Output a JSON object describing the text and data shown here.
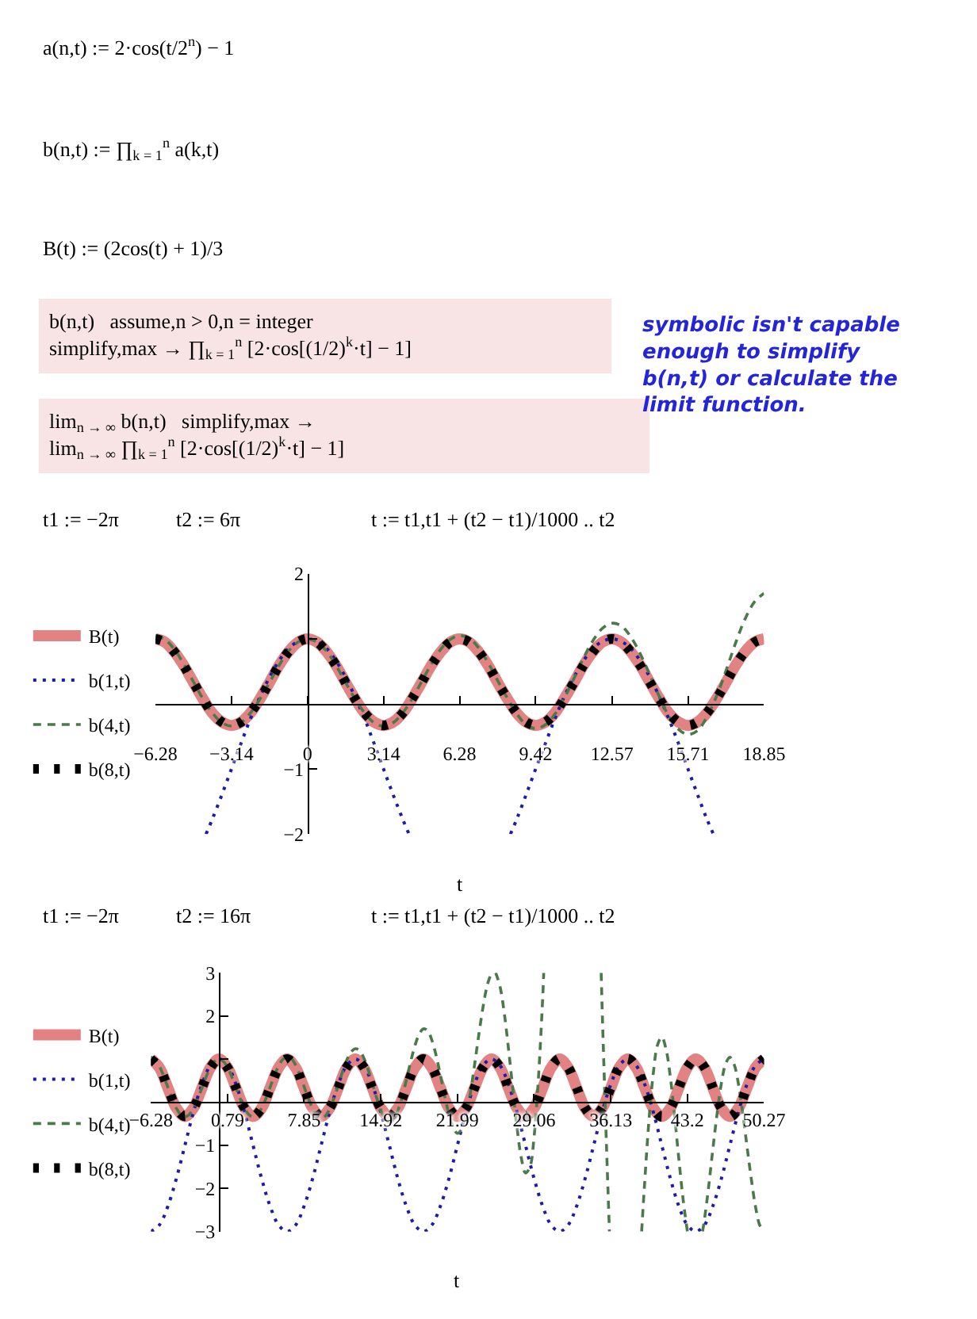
{
  "chart_data": [
    {
      "type": "line",
      "xlabel": "t",
      "annotations": [
        "a(n,t) := 2·cos(t/2$^{n}$) − 1",
        "b(n,t) := ∏$_{k = 1}$$^{n}$ a(k,t)",
        "B(t) := (2cos(t) + 1)/3",
        "b(n,t)   assume,n > 0,n = integer\nsimplify,max → ∏$_{k = 1}$$^{n}$ [2·cos[(1/2)$^{k}$·t] − 1]",
        "lim$_{n → ∞}$ b(n,t)   simplify,max →\nlim$_{n → ∞}$ ∏$_{k = 1}$$^{n}$ [2·cos[(1/2)$^{k}$·t] − 1]",
        "symbolic isn't capable enough to simplify b(n,t) or calculate the limit function.",
        "t1 := −2π",
        "t2 := 6π",
        "t := t1,t1 + (t2 − t1)/1000 .. t2"
      ],
      "x": [
        -6.28,
        -5.89,
        -5.5,
        -5.11,
        -4.71,
        -4.32,
        -3.93,
        -3.53,
        -3.14,
        -2.75,
        -2.36,
        -1.96,
        -1.57,
        -1.18,
        -0.79,
        -0.39,
        0,
        0.39,
        0.79,
        1.18,
        1.57,
        1.96,
        2.36,
        2.75,
        3.14,
        3.53,
        3.93,
        4.32,
        4.71,
        5.11,
        5.5,
        5.89,
        6.28,
        6.68,
        7.07,
        7.46,
        7.85,
        8.25,
        8.64,
        9.03,
        9.42,
        9.82,
        10.21,
        10.6,
        11.0,
        11.39,
        11.78,
        12.17,
        12.57,
        12.96,
        13.35,
        13.74,
        14.14,
        14.53,
        14.92,
        15.32,
        15.71,
        16.1,
        16.49,
        16.89,
        17.28,
        17.67,
        18.06,
        18.46,
        18.85
      ],
      "xlim": [
        -6.28,
        18.85
      ],
      "xticks": [
        -6.28,
        -3.14,
        0,
        3.14,
        6.28,
        9.42,
        12.57,
        15.71,
        18.85
      ],
      "ylim": [
        -2,
        2
      ],
      "yticks": [
        -2,
        -1,
        {
          "value": 1,
          "label": null
        },
        2
      ],
      "legend": "left",
      "series": [
        {
          "name": "B(t)",
          "color": "#e28282",
          "line_style": "solid",
          "values": [
            1,
            0.95,
            0.8,
            0.59,
            0.33,
            0.08,
            -0.14,
            -0.28,
            -0.33,
            -0.28,
            -0.14,
            0.08,
            0.33,
            0.59,
            0.8,
            0.95,
            1,
            0.95,
            0.8,
            0.59,
            0.33,
            0.08,
            -0.14,
            -0.28,
            -0.33,
            -0.28,
            -0.14,
            0.08,
            0.33,
            0.59,
            0.8,
            0.95,
            1,
            0.95,
            0.8,
            0.59,
            0.33,
            0.08,
            -0.14,
            -0.28,
            -0.33,
            -0.28,
            -0.14,
            0.08,
            0.33,
            0.59,
            0.8,
            0.95,
            1,
            0.95,
            0.8,
            0.59,
            0.33,
            0.08,
            -0.14,
            -0.28,
            -0.33,
            -0.28,
            -0.14,
            0.08,
            0.33,
            0.59,
            0.8,
            0.95,
            1
          ]
        },
        {
          "name": "b(1,t)",
          "color": "#1c1ca8",
          "line_style": "dotted",
          "x": [
            -4.19,
            -3.93,
            -3.53,
            -3.14,
            -2.75,
            -2.36,
            -1.96,
            -1.57,
            -1.18,
            -0.79,
            -0.39,
            0,
            0.39,
            0.79,
            1.18,
            1.57,
            1.96,
            2.36,
            2.75,
            3.14,
            3.53,
            3.93,
            4.19,
            6.28,
            8.38,
            8.64,
            9.03,
            9.42,
            9.82,
            10.21,
            10.6,
            11.0,
            11.39,
            11.78,
            12.17,
            12.57,
            12.96,
            13.35,
            13.74,
            14.14,
            14.53,
            14.92,
            15.32,
            15.71,
            16.1,
            16.49,
            16.76
          ],
          "values": [
            -2,
            -1.77,
            -1.39,
            -1,
            -0.61,
            -0.23,
            0.11,
            0.41,
            0.66,
            0.85,
            0.96,
            1,
            0.96,
            0.85,
            0.66,
            0.41,
            0.11,
            -0.23,
            -0.61,
            -1,
            -1.39,
            -1.77,
            -2,
            null,
            -2,
            -1.77,
            -1.39,
            -1,
            -0.61,
            -0.23,
            0.11,
            0.41,
            0.66,
            0.85,
            0.96,
            1,
            0.96,
            0.85,
            0.66,
            0.41,
            0.11,
            -0.23,
            -0.61,
            -1,
            -1.39,
            -1.77,
            -2
          ]
        },
        {
          "name": "b(4,t)",
          "color": "#4a7a4a",
          "line_style": "dashed",
          "values": [
            1.05,
            0.99,
            0.84,
            0.61,
            0.34,
            0.08,
            -0.14,
            -0.29,
            -0.34,
            -0.29,
            -0.14,
            0.08,
            0.33,
            0.59,
            0.81,
            0.95,
            1,
            0.95,
            0.81,
            0.59,
            0.33,
            0.08,
            -0.14,
            -0.29,
            -0.34,
            -0.29,
            -0.14,
            0.08,
            0.34,
            0.61,
            0.84,
            0.99,
            1.05,
            1.01,
            0.86,
            0.63,
            0.36,
            0.09,
            -0.15,
            -0.32,
            -0.38,
            -0.32,
            -0.16,
            0.09,
            0.39,
            0.7,
            0.97,
            1.16,
            1.24,
            1.2,
            1.03,
            0.77,
            0.44,
            0.11,
            -0.19,
            -0.39,
            -0.47,
            -0.41,
            -0.2,
            0.12,
            0.51,
            0.93,
            1.3,
            1.57,
            1.7
          ]
        },
        {
          "name": "b(8,t)",
          "color": "#000000",
          "line_style": "dotted",
          "values": [
            1,
            0.95,
            0.8,
            0.59,
            0.33,
            0.08,
            -0.14,
            -0.28,
            -0.33,
            -0.28,
            -0.14,
            0.08,
            0.33,
            0.59,
            0.8,
            0.95,
            1,
            0.95,
            0.8,
            0.59,
            0.33,
            0.08,
            -0.14,
            -0.28,
            -0.33,
            -0.28,
            -0.14,
            0.08,
            0.33,
            0.59,
            0.8,
            0.95,
            1,
            0.95,
            0.8,
            0.59,
            0.33,
            0.08,
            -0.14,
            -0.28,
            -0.33,
            -0.28,
            -0.14,
            0.08,
            0.33,
            0.59,
            0.8,
            0.95,
            1,
            0.95,
            0.8,
            0.59,
            0.33,
            0.08,
            -0.14,
            -0.28,
            -0.33,
            -0.28,
            -0.14,
            0.08,
            0.33,
            0.59,
            0.8,
            0.95,
            1
          ]
        }
      ]
    },
    {
      "type": "line",
      "xlabel": "t",
      "annotations": [
        "t1 := −2π",
        "t2 := 16π",
        "t := t1,t1 + (t2 − t1)/1000 .. t2"
      ],
      "x": [
        -6.28,
        -5.5,
        -4.71,
        -3.93,
        -3.14,
        -2.36,
        -1.57,
        -0.79,
        0,
        0.79,
        1.57,
        2.36,
        3.14,
        3.93,
        4.71,
        5.5,
        6.28,
        7.07,
        7.85,
        8.64,
        9.42,
        10.21,
        11.0,
        11.78,
        12.57,
        13.35,
        14.14,
        14.92,
        15.71,
        16.49,
        17.28,
        18.06,
        18.85,
        19.63,
        20.42,
        21.21,
        21.99,
        22.78,
        23.56,
        24.35,
        25.13,
        25.92,
        26.7,
        27.49,
        28.27,
        29.06,
        29.85,
        30.63,
        31.42,
        32.2,
        32.99,
        33.77,
        34.56,
        35.34,
        36.13,
        36.91,
        37.7,
        38.48,
        39.27,
        40.06,
        40.84,
        41.63,
        42.41,
        43.2,
        43.98,
        44.77,
        45.55,
        46.34,
        47.12,
        47.91,
        48.69,
        49.48,
        50.27
      ],
      "xlim": [
        -6.28,
        50.27
      ],
      "xticks": [
        -6.28,
        0.79,
        7.85,
        14.92,
        21.99,
        29.06,
        36.13,
        43.2,
        50.27
      ],
      "ylim": [
        -3,
        3
      ],
      "yticks": [
        -3,
        -2,
        -1,
        {
          "value": 1,
          "label": null
        },
        2,
        3
      ],
      "legend": "left",
      "series": [
        {
          "name": "B(t)",
          "color": "#e28282",
          "line_style": "solid",
          "values": [
            1,
            0.8,
            0.33,
            -0.14,
            -0.33,
            -0.14,
            0.33,
            0.8,
            1,
            0.8,
            0.33,
            -0.14,
            -0.33,
            -0.14,
            0.33,
            0.8,
            1,
            0.8,
            0.33,
            -0.14,
            -0.33,
            -0.14,
            0.33,
            0.8,
            1,
            0.8,
            0.33,
            -0.14,
            -0.33,
            -0.14,
            0.33,
            0.8,
            1,
            0.8,
            0.33,
            -0.14,
            -0.33,
            -0.14,
            0.33,
            0.8,
            1,
            0.8,
            0.33,
            -0.14,
            -0.33,
            -0.14,
            0.33,
            0.8,
            1,
            0.8,
            0.33,
            -0.14,
            -0.33,
            -0.14,
            0.33,
            0.8,
            1,
            0.8,
            0.33,
            -0.14,
            -0.33,
            -0.14,
            0.33,
            0.8,
            1,
            0.8,
            0.33,
            -0.14,
            -0.33,
            -0.14,
            0.33,
            0.8,
            1
          ]
        },
        {
          "name": "b(1,t)",
          "color": "#1c1ca8",
          "line_style": "dotted",
          "values": [
            -3,
            -2.85,
            -2.41,
            -1.77,
            -1,
            -0.23,
            0.41,
            0.85,
            1,
            0.85,
            0.41,
            -0.23,
            -1,
            -1.77,
            -2.41,
            -2.85,
            -3,
            -2.85,
            -2.41,
            -1.77,
            -1,
            -0.23,
            0.41,
            0.85,
            1,
            0.85,
            0.41,
            -0.23,
            -1,
            -1.77,
            -2.41,
            -2.85,
            -3,
            -2.85,
            -2.41,
            -1.77,
            -1,
            -0.23,
            0.41,
            0.85,
            1,
            0.85,
            0.41,
            -0.23,
            -1,
            -1.77,
            -2.41,
            -2.85,
            -3,
            -2.85,
            -2.41,
            -1.77,
            -1,
            -0.23,
            0.41,
            0.85,
            1,
            0.85,
            0.41,
            -0.23,
            -1,
            -1.77,
            -2.41,
            -2.85,
            -3,
            -2.85,
            -2.41,
            -1.77,
            -1,
            -0.23,
            0.41,
            0.85,
            1
          ]
        },
        {
          "name": "b(4,t)",
          "color": "#4a7a4a",
          "line_style": "dashed",
          "x": [
            -6.28,
            -5.89,
            -5.5,
            -5.11,
            -4.71,
            -4.32,
            -3.93,
            -3.53,
            -3.14,
            -2.75,
            -2.36,
            -1.96,
            -1.57,
            -1.18,
            -0.79,
            -0.39,
            0,
            0.39,
            0.79,
            1.18,
            1.57,
            1.96,
            2.36,
            2.75,
            3.14,
            3.53,
            3.93,
            4.32,
            4.71,
            5.11,
            5.5,
            5.89,
            6.28,
            6.68,
            7.07,
            7.46,
            7.85,
            8.25,
            8.64,
            9.03,
            9.42,
            9.82,
            10.21,
            10.6,
            11.0,
            11.39,
            11.78,
            12.17,
            12.57,
            12.96,
            13.35,
            13.74,
            14.14,
            14.53,
            14.92,
            15.32,
            15.71,
            16.1,
            16.49,
            16.89,
            17.28,
            17.67,
            18.06,
            18.46,
            18.85,
            19.24,
            19.63,
            20.03,
            20.42,
            20.81,
            21.21,
            21.6,
            21.99,
            22.38,
            22.78,
            23.17,
            23.56,
            23.95,
            24.35,
            24.74,
            25.13,
            25.32,
            25.51,
            25.53,
            25.92,
            26.31,
            26.7,
            27.1,
            27.49,
            27.88,
            28.27,
            28.67,
            29.06,
            29.45,
            29.85,
            29.95,
            32.59,
            35.25,
            35.34,
            35.74,
            36.01,
            37.7,
            38.98,
            39.27,
            39.66,
            40.06,
            40.45,
            40.84,
            41.23,
            41.63,
            42.02,
            42.41,
            42.8,
            43.2,
            43.98,
            44.6,
            44.77,
            45.16,
            45.55,
            45.95,
            46.34,
            46.73,
            47.12,
            47.52,
            47.91,
            48.3,
            48.69,
            49.09,
            49.48,
            49.87,
            50.27
          ],
          "values": [
            1.05,
            0.99,
            0.84,
            0.61,
            0.34,
            0.08,
            -0.14,
            -0.29,
            -0.34,
            -0.29,
            -0.14,
            0.08,
            0.33,
            0.59,
            0.81,
            0.95,
            1,
            0.95,
            0.81,
            0.59,
            0.33,
            0.08,
            -0.14,
            -0.29,
            -0.34,
            -0.29,
            -0.14,
            0.08,
            0.34,
            0.61,
            0.84,
            0.99,
            1.05,
            1.01,
            0.86,
            0.63,
            0.36,
            0.09,
            -0.15,
            -0.32,
            -0.38,
            -0.32,
            -0.16,
            0.09,
            0.39,
            0.7,
            0.97,
            1.16,
            1.24,
            1.2,
            1.03,
            0.77,
            0.44,
            0.11,
            -0.19,
            -0.39,
            -0.47,
            -0.41,
            -0.2,
            0.12,
            0.51,
            0.93,
            1.3,
            1.57,
            1.7,
            1.66,
            1.44,
            1.08,
            0.63,
            0.15,
            -0.28,
            -0.59,
            -0.72,
            -0.63,
            -0.32,
            0.19,
            0.84,
            1.54,
            2.2,
            2.71,
            3,
            null,
            3,
            2.99,
            2.68,
            2.07,
            1.24,
            0.31,
            -0.59,
            -1.29,
            -1.64,
            -1.51,
            -0.81,
            0.5,
            2.38,
            3,
            null,
            3,
            2.16,
            -1.02,
            -3,
            null,
            -3,
            -1.83,
            -0.41,
            0.68,
            1.33,
            1.51,
            1.23,
            0.58,
            -0.32,
            -1.31,
            -2.24,
            -3,
            null,
            -3,
            -2.73,
            -1.96,
            -1.09,
            -0.25,
            0.44,
            0.89,
            1.04,
            0.87,
            0.42,
            -0.24,
            -1.01,
            -1.77,
            -2.42,
            -2.85,
            -3
          ]
        },
        {
          "name": "b(8,t)",
          "color": "#000000",
          "line_style": "dotted",
          "values": [
            1,
            0.8,
            0.33,
            -0.14,
            -0.33,
            -0.14,
            0.33,
            0.8,
            1,
            0.8,
            0.33,
            -0.14,
            -0.33,
            -0.14,
            0.33,
            0.8,
            1,
            0.8,
            0.33,
            -0.14,
            -0.33,
            -0.14,
            0.33,
            0.81,
            1,
            0.81,
            0.33,
            -0.14,
            -0.33,
            -0.14,
            0.33,
            0.81,
            1,
            0.81,
            0.33,
            -0.14,
            -0.33,
            -0.14,
            0.33,
            0.81,
            1,
            0.81,
            0.33,
            -0.14,
            -0.33,
            -0.14,
            0.33,
            0.81,
            1.01,
            0.81,
            0.34,
            -0.14,
            -0.34,
            -0.14,
            0.34,
            0.81,
            1.01,
            0.81,
            0.34,
            -0.14,
            -0.34,
            -0.14,
            0.34,
            0.81,
            1.01,
            0.81,
            0.34,
            -0.14,
            -0.34,
            -0.14,
            0.34,
            0.81,
            1.01
          ]
        }
      ]
    }
  ]
}
